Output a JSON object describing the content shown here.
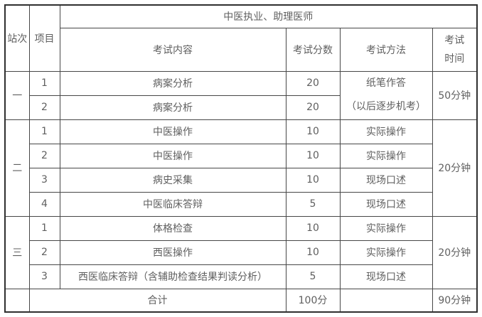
{
  "header": {
    "station": "站次",
    "item": "项目",
    "group": "中医执业、助理医师",
    "content": "考试内容",
    "score": "考试分数",
    "method": "考试方法",
    "time_line1": "考试",
    "time_line2": "时间"
  },
  "stations": [
    {
      "label": "一",
      "time": "50分钟",
      "method_lines": [
        "纸笔作答",
        "（以后逐步机考）"
      ],
      "rows": [
        {
          "no": "1",
          "content": "病案分析",
          "score": "20"
        },
        {
          "no": "2",
          "content": "病案分析",
          "score": "20"
        }
      ]
    },
    {
      "label": "二",
      "time": "20分钟",
      "rows": [
        {
          "no": "1",
          "content": "中医操作",
          "score": "10",
          "method": "实际操作"
        },
        {
          "no": "2",
          "content": "中医操作",
          "score": "10",
          "method": "实际操作"
        },
        {
          "no": "3",
          "content": "病史采集",
          "score": "10",
          "method": "现场口述"
        },
        {
          "no": "4",
          "content": "中医临床答辩",
          "score": "5",
          "method": "现场口述"
        }
      ]
    },
    {
      "label": "三",
      "time": "20分钟",
      "rows": [
        {
          "no": "1",
          "content": "体格检查",
          "score": "10",
          "method": "实际操作"
        },
        {
          "no": "2",
          "content": "西医操作",
          "score": "10",
          "method": "实际操作"
        },
        {
          "no": "3",
          "content": "西医临床答辩（含辅助检查结果判读分析）",
          "score": "5",
          "method": "现场口述"
        }
      ]
    }
  ],
  "total": {
    "label": "合计",
    "score": "100分",
    "time": "90分钟"
  },
  "colors": {
    "outer_border": "#2f2f2f",
    "inner_border": "#474747",
    "text": "#5f5f5f",
    "background": "#ffffff"
  }
}
